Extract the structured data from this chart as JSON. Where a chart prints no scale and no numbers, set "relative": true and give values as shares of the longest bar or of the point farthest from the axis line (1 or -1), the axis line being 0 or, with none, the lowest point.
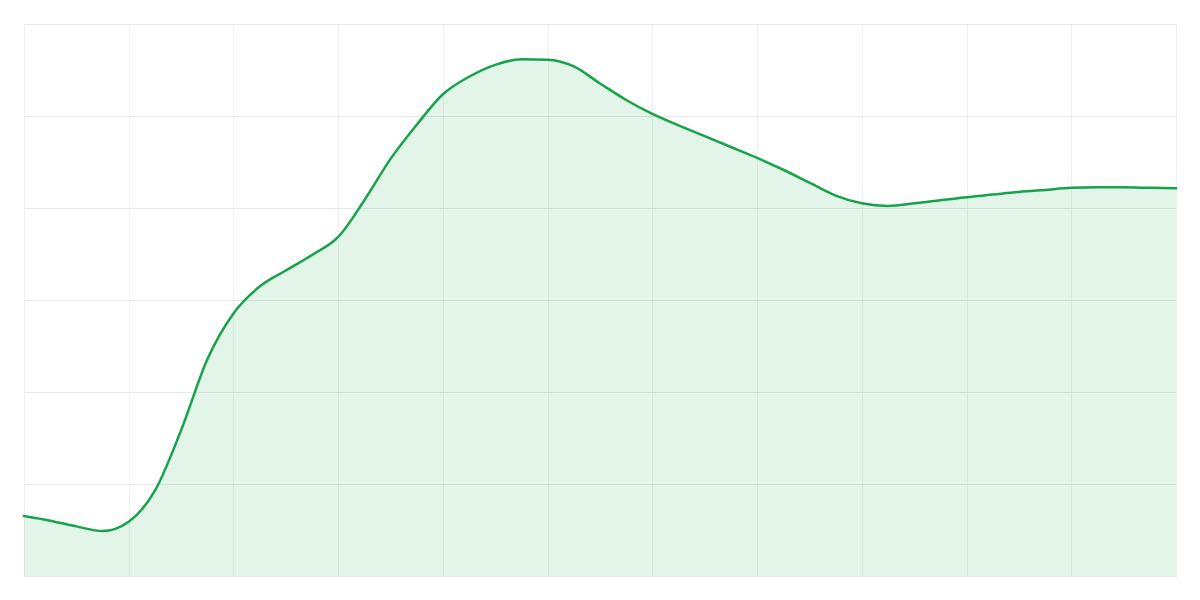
{
  "chart_data": {
    "type": "area",
    "relative": true,
    "categories": [
      null,
      null,
      null,
      null,
      null,
      null,
      null,
      null,
      null,
      null,
      null,
      null,
      null,
      null,
      null,
      null,
      null,
      null,
      null,
      null,
      null,
      null,
      null,
      null,
      null,
      null,
      null,
      null,
      null,
      null,
      null,
      null,
      null,
      null,
      null,
      null,
      null,
      null,
      null,
      null,
      null,
      null,
      null,
      null,
      null
    ],
    "values": [
      0.116,
      0.107,
      0.096,
      0.087,
      0.105,
      0.165,
      0.282,
      0.419,
      0.508,
      0.56,
      0.591,
      0.621,
      0.656,
      0.727,
      0.807,
      0.873,
      0.932,
      0.966,
      0.989,
      1.0,
      0.999,
      0.986,
      0.953,
      0.921,
      0.894,
      0.872,
      0.851,
      0.83,
      0.809,
      0.786,
      0.761,
      0.736,
      0.721,
      0.716,
      0.721,
      0.727,
      0.733,
      0.738,
      0.743,
      0.747,
      0.751,
      0.752,
      0.752,
      0.751,
      0.75
    ],
    "color": "#16a34a",
    "grid": true
  }
}
